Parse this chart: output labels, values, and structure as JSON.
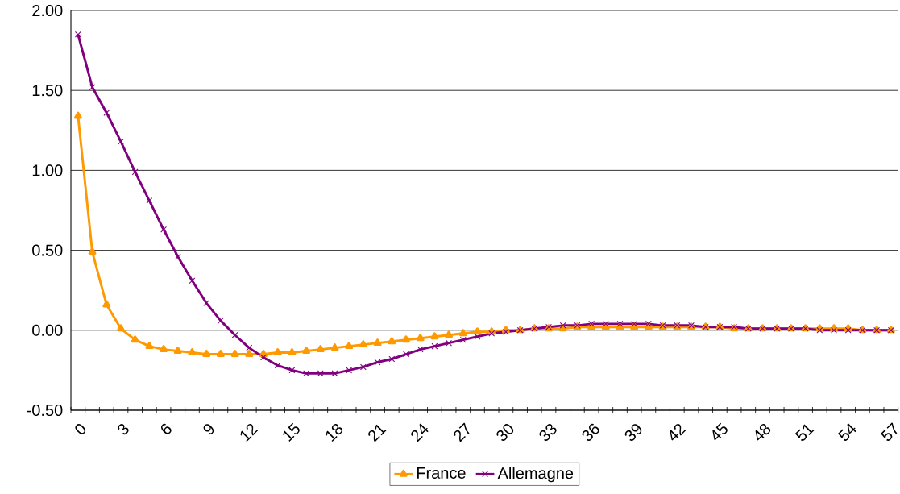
{
  "chart_data": {
    "type": "line",
    "categories": [
      "0",
      null,
      null,
      "3",
      null,
      null,
      "6",
      null,
      null,
      "9",
      null,
      null,
      "12",
      null,
      null,
      "15",
      null,
      null,
      "18",
      null,
      null,
      "21",
      null,
      null,
      "24",
      null,
      null,
      "27",
      null,
      null,
      "30",
      null,
      null,
      "33",
      null,
      null,
      "36",
      null,
      null,
      "39",
      null,
      null,
      "42",
      null,
      null,
      "45",
      null,
      null,
      "48",
      null,
      null,
      "51",
      null,
      null,
      "54",
      null,
      null,
      "57"
    ],
    "series": [
      {
        "name": "France",
        "color": "#ff9900",
        "marker": "triangle",
        "values": [
          1.34,
          0.49,
          0.16,
          0.01,
          -0.06,
          -0.1,
          -0.12,
          -0.13,
          -0.14,
          -0.15,
          -0.15,
          -0.15,
          -0.15,
          -0.15,
          -0.14,
          -0.14,
          -0.13,
          -0.12,
          -0.11,
          -0.1,
          -0.09,
          -0.08,
          -0.07,
          -0.06,
          -0.05,
          -0.04,
          -0.03,
          -0.02,
          -0.01,
          -0.01,
          0.0,
          0.0,
          0.01,
          0.01,
          0.01,
          0.02,
          0.02,
          0.02,
          0.02,
          0.02,
          0.02,
          0.02,
          0.02,
          0.02,
          0.02,
          0.02,
          0.01,
          0.01,
          0.01,
          0.01,
          0.01,
          0.01,
          0.01,
          0.01,
          0.01,
          0.0,
          0.0,
          0.0
        ]
      },
      {
        "name": "Allemagne",
        "color": "#800080",
        "marker": "cross",
        "values": [
          1.85,
          1.52,
          1.36,
          1.18,
          0.99,
          0.81,
          0.63,
          0.46,
          0.31,
          0.17,
          0.06,
          -0.03,
          -0.11,
          -0.17,
          -0.22,
          -0.25,
          -0.27,
          -0.27,
          -0.27,
          -0.25,
          -0.23,
          -0.2,
          -0.18,
          -0.15,
          -0.12,
          -0.1,
          -0.08,
          -0.06,
          -0.04,
          -0.02,
          -0.01,
          0.0,
          0.01,
          0.02,
          0.03,
          0.03,
          0.04,
          0.04,
          0.04,
          0.04,
          0.04,
          0.03,
          0.03,
          0.03,
          0.02,
          0.02,
          0.02,
          0.01,
          0.01,
          0.01,
          0.01,
          0.01,
          0.0,
          0.0,
          0.0,
          0.0,
          0.0,
          0.0
        ]
      }
    ],
    "ylim": [
      -0.5,
      2
    ],
    "yticks": [
      {
        "value": -0.5,
        "label": "-0.50"
      },
      {
        "value": 0,
        "label": "0.00"
      },
      {
        "value": 0.5,
        "label": "0.50"
      },
      {
        "value": 1,
        "label": "1.00"
      },
      {
        "value": 1.5,
        "label": "1.50"
      },
      {
        "value": 2,
        "label": "2.00"
      }
    ],
    "grid": "y",
    "legend": "bottom"
  }
}
